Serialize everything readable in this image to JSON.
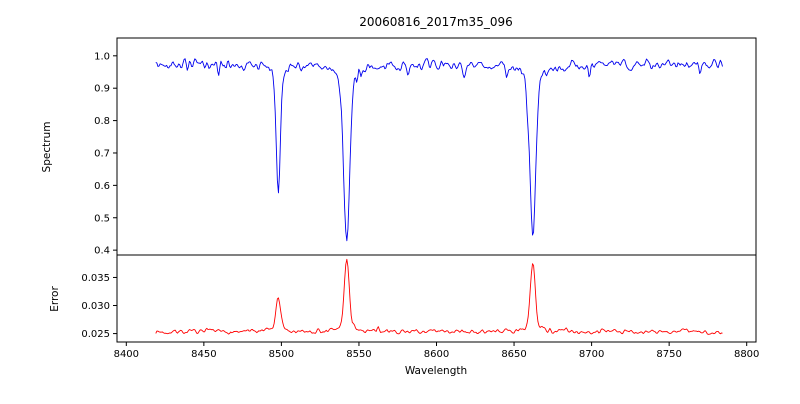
{
  "chart_data": {
    "type": "line",
    "title": "20060816_2017m35_096",
    "xlabel": "Wavelength",
    "x_range": [
      8394,
      8806
    ],
    "x_ticks": [
      {
        "v": 8400,
        "label": "8400"
      },
      {
        "v": 8450,
        "label": "8450"
      },
      {
        "v": 8500,
        "label": "8500"
      },
      {
        "v": 8550,
        "label": "8550"
      },
      {
        "v": 8600,
        "label": "8600"
      },
      {
        "v": 8650,
        "label": "8650"
      },
      {
        "v": 8700,
        "label": "8700"
      },
      {
        "v": 8750,
        "label": "8750"
      },
      {
        "v": 8800,
        "label": "8800"
      }
    ],
    "panels": [
      {
        "name": "spectrum",
        "ylabel": "Spectrum",
        "y_range": [
          0.385,
          1.055
        ],
        "y_ticks": [
          {
            "v": 1.0,
            "label": "1.0"
          },
          {
            "v": 0.9,
            "label": "0.9"
          },
          {
            "v": 0.8,
            "label": "0.8"
          },
          {
            "v": 0.7,
            "label": "0.7"
          },
          {
            "v": 0.6,
            "label": "0.6"
          },
          {
            "v": 0.5,
            "label": "0.5"
          },
          {
            "v": 0.4,
            "label": "0.4"
          }
        ],
        "line_color": "#0000ee",
        "series": {
          "x_start": 8419,
          "x_end": 8785,
          "step": 0.7,
          "baseline": 0.973,
          "noise": 0.021,
          "spike_prob": 0.045,
          "spike_depth": 0.075,
          "direction": -1,
          "seed": 42,
          "features": [
            {
              "center": 8498.0,
              "amp": 0.4,
              "width": 1.2
            },
            {
              "center": 8542.1,
              "amp": 0.555,
              "width": 1.8
            },
            {
              "center": 8662.1,
              "amp": 0.535,
              "width": 1.8
            }
          ]
        }
      },
      {
        "name": "error",
        "ylabel": "Error",
        "y_range": [
          0.0235,
          0.039
        ],
        "y_ticks": [
          {
            "v": 0.035,
            "label": "0.035"
          },
          {
            "v": 0.03,
            "label": "0.030"
          },
          {
            "v": 0.025,
            "label": "0.025"
          }
        ],
        "line_color": "#ff0000",
        "series": {
          "x_start": 8419,
          "x_end": 8785,
          "step": 0.7,
          "baseline": 0.0253,
          "noise": 0.00055,
          "spike_prob": 0.05,
          "spike_depth": 0.0013,
          "direction": 1,
          "seed": 7,
          "features": [
            {
              "center": 8498.0,
              "amp": 0.0062,
              "width": 1.4
            },
            {
              "center": 8542.1,
              "amp": 0.0128,
              "width": 1.5
            },
            {
              "center": 8662.1,
              "amp": 0.0122,
              "width": 1.5
            }
          ]
        }
      }
    ]
  }
}
